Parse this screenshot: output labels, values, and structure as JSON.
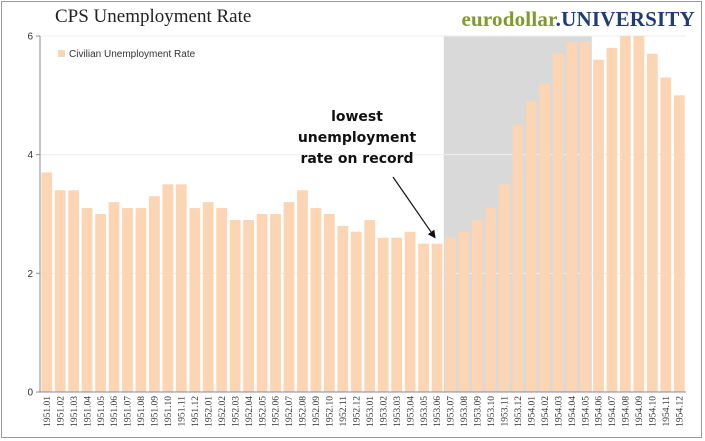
{
  "title": "CPS Unemployment Rate",
  "brand": {
    "part1": "eurodollar",
    "part2": ".UNIVERSITY"
  },
  "colors": {
    "bar": "#fcd5b4",
    "shade": "#d9d9d9",
    "brand_green": "#7e9a2a",
    "brand_blue": "#1f3d73"
  },
  "chart_data": {
    "type": "bar",
    "title": "CPS Unemployment Rate",
    "xlabel": "",
    "ylabel": "",
    "ylim": [
      0,
      6
    ],
    "yticks": [
      0,
      2,
      4,
      6
    ],
    "grid": true,
    "legend": {
      "position": "top-left",
      "entries": [
        "Civilian Unemployment Rate"
      ]
    },
    "categories": [
      "1951.01",
      "1951.02",
      "1951.03",
      "1951.04",
      "1951.05",
      "1951.06",
      "1951.07",
      "1951.08",
      "1951.09",
      "1951.10",
      "1951.11",
      "1951.12",
      "1952.01",
      "1952.02",
      "1952.03",
      "1952.04",
      "1952.05",
      "1952.06",
      "1952.07",
      "1952.08",
      "1952.09",
      "1952.10",
      "1952.11",
      "1952.12",
      "1953.01",
      "1953.02",
      "1953.03",
      "1953.04",
      "1953.05",
      "1953.06",
      "1953.07",
      "1953.08",
      "1953.09",
      "1953.10",
      "1953.11",
      "1953.12",
      "1954.01",
      "1954.02",
      "1954.03",
      "1954.04",
      "1954.05",
      "1954.06",
      "1954.07",
      "1954.08",
      "1954.09",
      "1954.10",
      "1954.11",
      "1954.12"
    ],
    "series": [
      {
        "name": "Civilian Unemployment Rate",
        "values": [
          3.7,
          3.4,
          3.4,
          3.1,
          3.0,
          3.2,
          3.1,
          3.1,
          3.3,
          3.5,
          3.5,
          3.1,
          3.2,
          3.1,
          2.9,
          2.9,
          3.0,
          3.0,
          3.2,
          3.4,
          3.1,
          3.0,
          2.8,
          2.7,
          2.9,
          2.6,
          2.6,
          2.7,
          2.5,
          2.5,
          2.6,
          2.7,
          2.9,
          3.1,
          3.5,
          4.5,
          4.9,
          5.2,
          5.7,
          5.9,
          5.9,
          5.6,
          5.8,
          6.0,
          6.1,
          5.7,
          5.3,
          5.0
        ]
      }
    ],
    "shaded_region": {
      "from": "1953.07",
      "to": "1954.05",
      "meaning": "recession"
    },
    "annotation": {
      "lines": [
        "lowest",
        "unemployment",
        "rate on record"
      ],
      "points_to": "1953.06"
    }
  }
}
